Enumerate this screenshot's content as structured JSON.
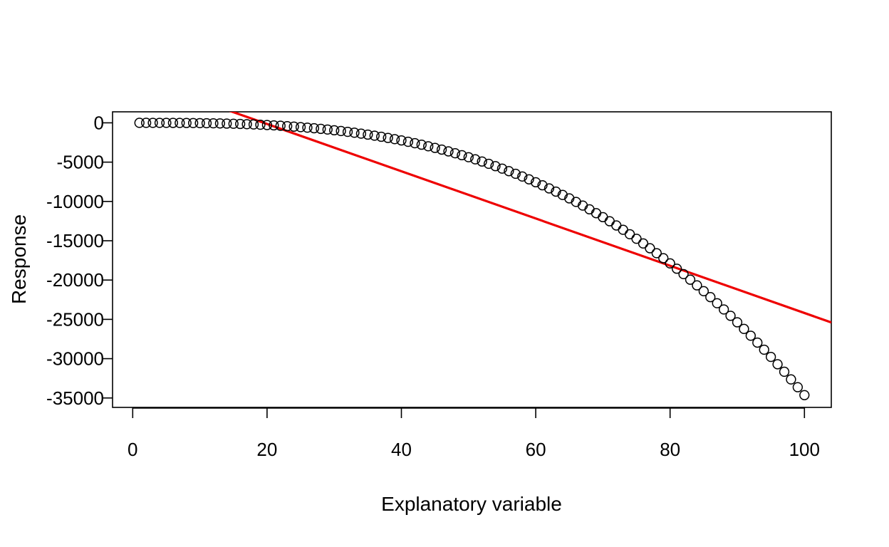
{
  "chart_data": {
    "type": "scatter",
    "title": "",
    "xlabel": "Explanatory variable",
    "ylabel": "Response",
    "xlim": [
      -3,
      104
    ],
    "ylim": [
      -36200,
      1400
    ],
    "x_ticks": [
      0,
      20,
      40,
      60,
      80,
      100
    ],
    "y_ticks": [
      0,
      -5000,
      -10000,
      -15000,
      -20000,
      -25000,
      -30000,
      -35000
    ],
    "x_tick_labels": [
      "0",
      "20",
      "40",
      "60",
      "80",
      "100"
    ],
    "y_tick_labels": [
      "0",
      "-5000",
      "-10000",
      "-15000",
      "-20000",
      "-25000",
      "-30000",
      "-35000"
    ],
    "grid": false,
    "legend": "none",
    "series": [
      {
        "type": "points",
        "marker": "open-circle",
        "color": "#000000",
        "x": [
          1,
          2,
          3,
          4,
          5,
          6,
          7,
          8,
          9,
          10,
          11,
          12,
          13,
          14,
          15,
          16,
          17,
          18,
          19,
          20,
          21,
          22,
          23,
          24,
          25,
          26,
          27,
          28,
          29,
          30,
          31,
          32,
          33,
          34,
          35,
          36,
          37,
          38,
          39,
          40,
          41,
          42,
          43,
          44,
          45,
          46,
          47,
          48,
          49,
          50,
          51,
          52,
          53,
          54,
          55,
          56,
          57,
          58,
          59,
          60,
          61,
          62,
          63,
          64,
          65,
          66,
          67,
          68,
          69,
          70,
          71,
          72,
          73,
          74,
          75,
          76,
          77,
          78,
          79,
          80,
          81,
          82,
          83,
          84,
          85,
          86,
          87,
          88,
          89,
          90,
          91,
          92,
          93,
          94,
          95,
          96,
          97,
          98,
          99,
          100
        ],
        "y": [
          0,
          0,
          -1,
          -2,
          -4,
          -8,
          -12,
          -18,
          -26,
          -35,
          -47,
          -60,
          -77,
          -96,
          -118,
          -143,
          -172,
          -204,
          -240,
          -280,
          -324,
          -373,
          -426,
          -484,
          -547,
          -615,
          -688,
          -768,
          -853,
          -945,
          -1042,
          -1147,
          -1257,
          -1375,
          -1500,
          -1633,
          -1773,
          -1920,
          -2076,
          -2240,
          -2412,
          -2593,
          -2782,
          -2981,
          -3189,
          -3407,
          -3634,
          -3871,
          -4118,
          -4375,
          -4643,
          -4921,
          -5211,
          -5511,
          -5823,
          -6147,
          -6482,
          -6829,
          -7188,
          -7560,
          -7944,
          -8341,
          -8751,
          -9174,
          -9611,
          -10061,
          -10525,
          -11002,
          -11494,
          -12000,
          -12520,
          -13055,
          -13605,
          -14170,
          -14750,
          -15345,
          -15956,
          -16582,
          -17224,
          -17882,
          -18556,
          -19246,
          -19953,
          -20676,
          -21416,
          -22174,
          -22948,
          -23739,
          -24548,
          -25375,
          -26219,
          -27081,
          -27961,
          -28860,
          -29776,
          -30712,
          -31666,
          -32639,
          -33631,
          -34642
        ]
      },
      {
        "type": "line",
        "color": "#ee0000",
        "intercept": 5860,
        "slope": -300.5
      }
    ]
  }
}
